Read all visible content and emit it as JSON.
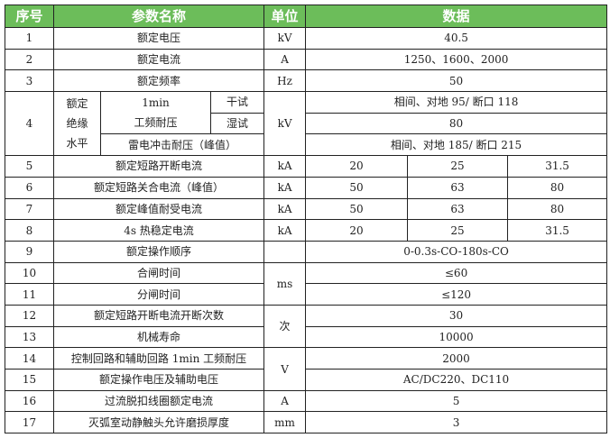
{
  "header": {
    "no": "序号",
    "param": "参数名称",
    "unit": "单位",
    "data": "数据"
  },
  "rows": {
    "r1": {
      "no": "1",
      "param": "额定电压",
      "unit": "kV",
      "value": "40.5"
    },
    "r2": {
      "no": "2",
      "param": "额定电流",
      "unit": "A",
      "value": "1250、1600、2000"
    },
    "r3": {
      "no": "3",
      "param": "额定频率",
      "unit": "Hz",
      "value": "50"
    },
    "r4": {
      "no": "4",
      "group_line1": "额定",
      "group_line2": "绝缘",
      "group_line3": "水平",
      "pf_line1": "1min",
      "pf_line2": "工频耐压",
      "dry": "干试",
      "wet": "湿试",
      "lightning": "雷电冲击耐压（峰值）",
      "unit": "kV",
      "dry_value": "相间、对地 95/ 断口 118",
      "wet_value": "80",
      "lightning_value": "相间、对地 185/ 断口 215"
    },
    "r5": {
      "no": "5",
      "param": "额定短路开断电流",
      "unit": "kA",
      "values": [
        "20",
        "25",
        "31.5"
      ]
    },
    "r6": {
      "no": "6",
      "param": "额定短路关合电流（峰值）",
      "unit": "kA",
      "values": [
        "50",
        "63",
        "80"
      ]
    },
    "r7": {
      "no": "7",
      "param": "额定峰值耐受电流",
      "unit": "kA",
      "values": [
        "50",
        "63",
        "80"
      ]
    },
    "r8": {
      "no": "8",
      "param": "4s 热稳定电流",
      "unit": "kA",
      "values": [
        "20",
        "25",
        "31.5"
      ]
    },
    "r9": {
      "no": "9",
      "param": "额定操作顺序",
      "unit": "",
      "value": "0-0.3s-CO-180s-CO"
    },
    "r10": {
      "no": "10",
      "param": "合闸时间",
      "unit": "ms",
      "value": "≤60"
    },
    "r11": {
      "no": "11",
      "param": "分闸时间",
      "value": "≤120"
    },
    "r12": {
      "no": "12",
      "param": "额定短路开断电流开断次数",
      "unit": "次",
      "value": "30"
    },
    "r13": {
      "no": "13",
      "param": "机械寿命",
      "value": "10000"
    },
    "r14": {
      "no": "14",
      "param": "控制回路和辅助回路 1min 工频耐压",
      "unit": "V",
      "value": "2000"
    },
    "r15": {
      "no": "15",
      "param": "额定操作电压及辅助电压",
      "value": "AC/DC220、DC110"
    },
    "r16": {
      "no": "16",
      "param": "过流脱扣线圈额定电流",
      "unit": "A",
      "value": "5"
    },
    "r17": {
      "no": "17",
      "param": "灭弧室动静触头允许磨损厚度",
      "unit": "mm",
      "value": "3"
    }
  },
  "colors": {
    "header_bg": "#6cbd5a",
    "header_text": "#ffffff"
  }
}
